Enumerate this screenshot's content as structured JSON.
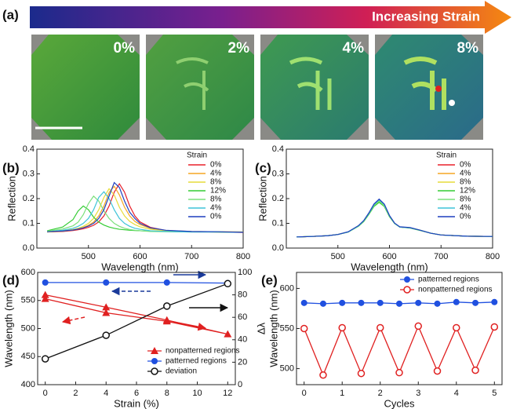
{
  "panel_a": {
    "label": "(a)",
    "arrow_text": "Increasing Strain",
    "image_labels": [
      "0%",
      "2%",
      "4%",
      "8%"
    ]
  },
  "chart_data": [
    {
      "type": "line",
      "panel": "(b)",
      "xlabel": "Wavelength (nm)",
      "ylabel": "Reflection",
      "xlim": [
        400,
        800
      ],
      "ylim": [
        0,
        0.4
      ],
      "xticks": [
        500,
        600,
        700,
        800
      ],
      "yticks": [
        {
          "value": 0,
          "label": "0.0"
        },
        0.1,
        0.2,
        0.3,
        0.4
      ],
      "legend": "upper right",
      "legend_title": "Strain",
      "x": [
        420,
        450,
        470,
        480,
        490,
        500,
        510,
        520,
        530,
        540,
        550,
        560,
        570,
        580,
        590,
        600,
        620,
        650,
        700,
        750,
        800
      ],
      "series": [
        {
          "name": "0%",
          "color": "#e8202a",
          "values": [
            0.065,
            0.067,
            0.071,
            0.074,
            0.078,
            0.084,
            0.092,
            0.106,
            0.13,
            0.17,
            0.226,
            0.26,
            0.226,
            0.17,
            0.13,
            0.106,
            0.084,
            0.071,
            0.066,
            0.065,
            0.063
          ]
        },
        {
          "name": "4%",
          "color": "#f5a623",
          "values": [
            0.065,
            0.068,
            0.073,
            0.077,
            0.083,
            0.092,
            0.105,
            0.13,
            0.17,
            0.225,
            0.25,
            0.215,
            0.165,
            0.13,
            0.108,
            0.095,
            0.08,
            0.071,
            0.067,
            0.066,
            0.065
          ]
        },
        {
          "name": "8%",
          "color": "#e6dc3a",
          "values": [
            0.065,
            0.07,
            0.075,
            0.08,
            0.088,
            0.1,
            0.12,
            0.155,
            0.205,
            0.24,
            0.215,
            0.165,
            0.13,
            0.108,
            0.095,
            0.086,
            0.076,
            0.07,
            0.066,
            0.065,
            0.065
          ]
        },
        {
          "name": "12%",
          "color": "#33cc33",
          "values": [
            0.07,
            0.085,
            0.115,
            0.15,
            0.17,
            0.155,
            0.125,
            0.105,
            0.093,
            0.085,
            0.08,
            0.076,
            0.074,
            0.072,
            0.071,
            0.07,
            0.068,
            0.067,
            0.066,
            0.065,
            0.064
          ]
        },
        {
          "name": "8%",
          "color": "#7be07b",
          "values": [
            0.068,
            0.077,
            0.09,
            0.105,
            0.135,
            0.18,
            0.21,
            0.19,
            0.15,
            0.12,
            0.1,
            0.088,
            0.08,
            0.075,
            0.072,
            0.07,
            0.067,
            0.066,
            0.065,
            0.065,
            0.064
          ]
        },
        {
          "name": "4%",
          "color": "#3fc4d8",
          "values": [
            0.066,
            0.072,
            0.08,
            0.088,
            0.1,
            0.12,
            0.155,
            0.205,
            0.228,
            0.2,
            0.155,
            0.12,
            0.1,
            0.088,
            0.08,
            0.076,
            0.07,
            0.067,
            0.065,
            0.065,
            0.064
          ]
        },
        {
          "name": "0%",
          "color": "#1f3fbf",
          "values": [
            0.066,
            0.069,
            0.073,
            0.077,
            0.082,
            0.089,
            0.1,
            0.12,
            0.155,
            0.21,
            0.265,
            0.245,
            0.19,
            0.145,
            0.12,
            0.1,
            0.082,
            0.072,
            0.067,
            0.066,
            0.064
          ]
        }
      ]
    },
    {
      "type": "line",
      "panel": "(c)",
      "xlabel": "Wavelength (nm)",
      "ylabel": "Reflection",
      "xlim": [
        400,
        800
      ],
      "ylim": [
        0,
        0.4
      ],
      "xticks": [
        500,
        600,
        700,
        800
      ],
      "yticks": [
        {
          "value": 0,
          "label": "0.0"
        },
        0.1,
        0.2,
        0.3,
        0.4
      ],
      "legend": "upper right",
      "legend_title": "Strain",
      "x": [
        420,
        450,
        480,
        500,
        520,
        540,
        550,
        560,
        570,
        580,
        590,
        600,
        610,
        620,
        640,
        660,
        680,
        700,
        750,
        800
      ],
      "series": [
        {
          "name": "0%",
          "color": "#e8202a",
          "values": [
            0.045,
            0.047,
            0.05,
            0.055,
            0.065,
            0.09,
            0.11,
            0.14,
            0.175,
            0.195,
            0.175,
            0.13,
            0.1,
            0.085,
            0.082,
            0.072,
            0.06,
            0.053,
            0.048,
            0.047
          ]
        },
        {
          "name": "4%",
          "color": "#f5a623",
          "values": [
            0.045,
            0.047,
            0.05,
            0.055,
            0.065,
            0.09,
            0.11,
            0.14,
            0.172,
            0.19,
            0.172,
            0.13,
            0.1,
            0.085,
            0.082,
            0.072,
            0.06,
            0.053,
            0.048,
            0.047
          ]
        },
        {
          "name": "8%",
          "color": "#e6dc3a",
          "values": [
            0.045,
            0.047,
            0.05,
            0.055,
            0.065,
            0.089,
            0.108,
            0.138,
            0.17,
            0.188,
            0.17,
            0.128,
            0.1,
            0.085,
            0.082,
            0.072,
            0.06,
            0.053,
            0.048,
            0.047
          ]
        },
        {
          "name": "12%",
          "color": "#33cc33",
          "values": [
            0.045,
            0.047,
            0.05,
            0.055,
            0.065,
            0.088,
            0.107,
            0.136,
            0.168,
            0.185,
            0.168,
            0.127,
            0.099,
            0.085,
            0.081,
            0.071,
            0.06,
            0.053,
            0.048,
            0.047
          ]
        },
        {
          "name": "8%",
          "color": "#7be07b",
          "values": [
            0.045,
            0.047,
            0.05,
            0.055,
            0.065,
            0.089,
            0.109,
            0.139,
            0.172,
            0.19,
            0.171,
            0.129,
            0.1,
            0.085,
            0.082,
            0.072,
            0.06,
            0.053,
            0.048,
            0.047
          ]
        },
        {
          "name": "4%",
          "color": "#3fc4d8",
          "values": [
            0.045,
            0.047,
            0.05,
            0.055,
            0.065,
            0.09,
            0.11,
            0.14,
            0.176,
            0.195,
            0.176,
            0.131,
            0.1,
            0.085,
            0.082,
            0.072,
            0.06,
            0.053,
            0.048,
            0.047
          ]
        },
        {
          "name": "0%",
          "color": "#1f3fbf",
          "values": [
            0.045,
            0.047,
            0.05,
            0.055,
            0.066,
            0.091,
            0.111,
            0.142,
            0.178,
            0.198,
            0.178,
            0.132,
            0.101,
            0.086,
            0.083,
            0.072,
            0.06,
            0.053,
            0.048,
            0.047
          ]
        }
      ]
    },
    {
      "type": "line",
      "panel": "(d)",
      "xlabel": "Strain (%)",
      "ylabel": "Wavelength (nm)",
      "y2label": "Δλ",
      "xlim": [
        -0.5,
        12.5
      ],
      "ylim": [
        400,
        600
      ],
      "y2lim": [
        0,
        100
      ],
      "xticks": [
        0,
        2,
        4,
        6,
        8,
        10,
        12
      ],
      "yticks": [
        400,
        450,
        500,
        550,
        600
      ],
      "y2ticks": [
        0,
        20,
        40,
        60,
        80,
        100
      ],
      "legend": "lower right",
      "series": [
        {
          "name": "nonpatterned regions",
          "color": "#e02020",
          "marker": "triangle",
          "x": [
            0,
            4,
            8,
            12,
            8,
            4,
            0
          ],
          "values": [
            560,
            538,
            515,
            490,
            513,
            528,
            553
          ]
        },
        {
          "name": "patterned regions",
          "color": "#2050e0",
          "marker": "circle",
          "x": [
            0,
            4,
            8,
            12
          ],
          "values": [
            582,
            582,
            582,
            581
          ]
        },
        {
          "name": "deviation",
          "color": "#111111",
          "marker": "open-circle",
          "axis": "y2",
          "x": [
            0,
            4,
            8,
            12
          ],
          "values": [
            23,
            44,
            70,
            90
          ]
        }
      ]
    },
    {
      "type": "line",
      "panel": "(e)",
      "xlabel": "Cycles",
      "ylabel": "Wavelength (nm)",
      "xlim": [
        -0.2,
        5.2
      ],
      "ylim": [
        480,
        620
      ],
      "xticks": [
        0,
        1,
        2,
        3,
        4,
        5
      ],
      "yticks": [
        500,
        550,
        600
      ],
      "legend": "upper right",
      "x": [
        0,
        0.5,
        1,
        1.5,
        2,
        2.5,
        3,
        3.5,
        4,
        4.5,
        5
      ],
      "series": [
        {
          "name": "patterned regions",
          "color": "#2050e0",
          "marker": "circle",
          "values": [
            582,
            581,
            582,
            582,
            582,
            581,
            582,
            581,
            583,
            582,
            583
          ]
        },
        {
          "name": "nonpatterned regions",
          "color": "#e02020",
          "marker": "open-circle",
          "values": [
            550,
            492,
            551,
            494,
            551,
            495,
            553,
            497,
            551,
            498,
            552
          ]
        }
      ]
    }
  ]
}
